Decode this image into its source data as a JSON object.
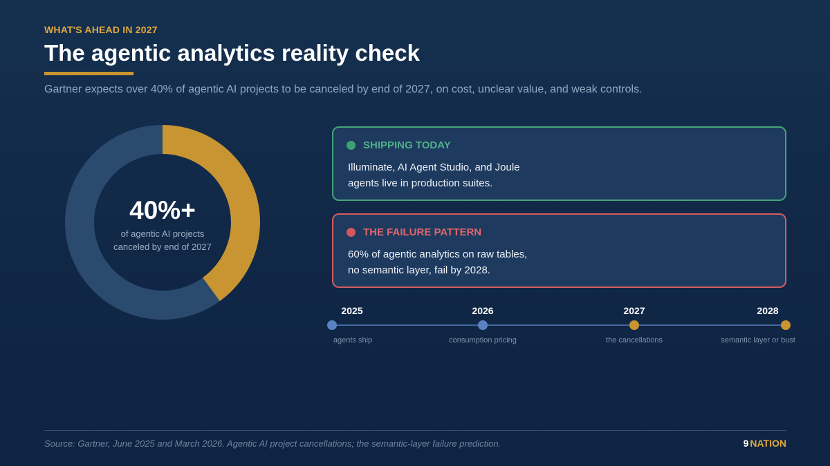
{
  "header": {
    "eyebrow": "WHAT'S AHEAD IN 2027",
    "title": "The agentic analytics reality check",
    "subtitle": "Gartner expects over 40% of agentic AI projects to be canceled by end of 2027, on cost, unclear value, and weak controls."
  },
  "donut": {
    "value_label": "40%+",
    "caption": "of agentic AI projects canceled by end of 2027",
    "fraction": 0.4,
    "highlight_color": "#c89532",
    "track_color": "#2a4a6e"
  },
  "cards": [
    {
      "heading": "SHIPPING TODAY",
      "body_line1": "Illuminate, AI Agent Studio, and Joule",
      "body_line2": "agents live in production suites.",
      "accent_color": "#45a47b"
    },
    {
      "heading": "THE FAILURE PATTERN",
      "body_line1": "60% of agentic analytics on raw tables,",
      "body_line2": "no semantic layer, fail by 2028.",
      "accent_color": "#d45d62"
    }
  ],
  "timeline": [
    {
      "year": "2025",
      "label": "agents ship",
      "color": "#5b82c4"
    },
    {
      "year": "2026",
      "label": "consumption pricing",
      "color": "#5b82c4"
    },
    {
      "year": "2027",
      "label": "the cancellations",
      "color": "#c89532"
    },
    {
      "year": "2028",
      "label": "semantic layer or bust",
      "color": "#c89532"
    }
  ],
  "footer": {
    "source": "Source: Gartner, June 2025 and March 2026. Agentic AI project cancellations; the semantic-layer failure prediction.",
    "brand_num": "9",
    "brand_name": "NATION"
  }
}
